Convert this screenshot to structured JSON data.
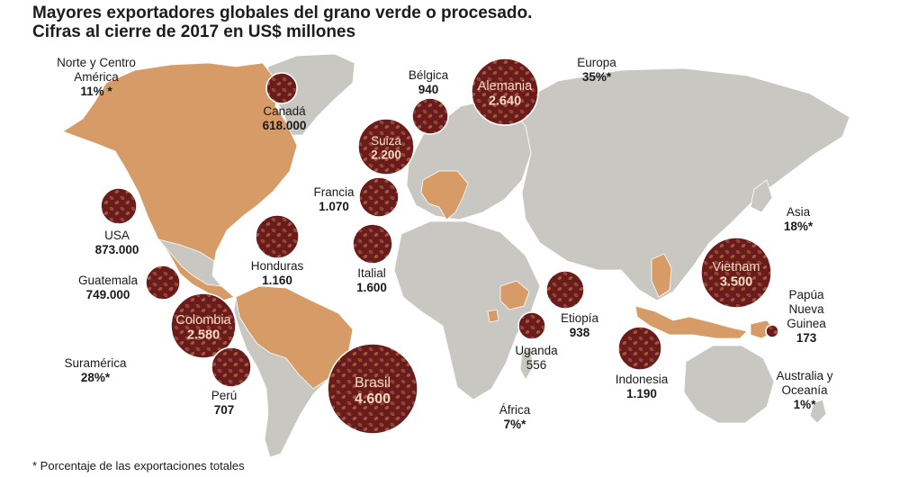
{
  "title": {
    "line1": "Mayores exportadores globales del grano verde o procesado.",
    "line2": "Cifras al cierre de 2017 en US$ millones"
  },
  "footnote": "* Porcentaje de las exportaciones totales",
  "colors": {
    "land": "#c9c7c2",
    "producer": "#d69b66",
    "bubble": "#6a1c1c",
    "bean": "#a3563b",
    "bubble_text": "#f3d9c3"
  },
  "regions": [
    {
      "id": "norte-centro-america",
      "name": "Norte y Centro América",
      "name1": "Norte y Centro",
      "name2": "América",
      "pct": "11% *"
    },
    {
      "id": "suramerica",
      "name": "Suramérica",
      "pct": "28%*"
    },
    {
      "id": "europa",
      "name": "Europa",
      "pct": "35%*"
    },
    {
      "id": "asia",
      "name": "Asia",
      "pct": "18%*"
    },
    {
      "id": "africa",
      "name": "África",
      "pct": "7%*"
    },
    {
      "id": "australia-oceania",
      "name": "Australia y Oceanía",
      "name1": "Australia y",
      "name2": "Oceanía",
      "pct": "1%*"
    }
  ],
  "exporters": [
    {
      "id": "canada",
      "name": "Canadá",
      "value": "618.000",
      "inside": false,
      "icon": "coffee-beans-icon"
    },
    {
      "id": "usa",
      "name": "USA",
      "value": "873.000",
      "inside": false,
      "icon": "coffee-beans-icon"
    },
    {
      "id": "guatemala",
      "name": "Guatemala",
      "value": "749.000",
      "inside": false,
      "icon": "coffee-beans-icon"
    },
    {
      "id": "honduras",
      "name": "Honduras",
      "value": "1.160",
      "inside": false,
      "icon": "coffee-beans-icon"
    },
    {
      "id": "colombia",
      "name": "Colombia",
      "value": "2.580",
      "inside": true
    },
    {
      "id": "peru",
      "name": "Perú",
      "value": "707",
      "inside": false,
      "icon": "coffee-beans-icon"
    },
    {
      "id": "brasil",
      "name": "Brasil",
      "value": "4.600",
      "inside": true
    },
    {
      "id": "belgica",
      "name": "Bélgica",
      "value": "940",
      "inside": false,
      "icon": "coffee-beans-icon"
    },
    {
      "id": "alemania",
      "name": "Alemania",
      "value": "2.640",
      "inside": true
    },
    {
      "id": "suiza",
      "name": "Suiza",
      "value": "2.200",
      "inside": true
    },
    {
      "id": "francia",
      "name": "Francia",
      "value": "1.070",
      "inside": false,
      "icon": "coffee-beans-icon"
    },
    {
      "id": "italia",
      "name": "Italial",
      "value": "1.600",
      "inside": false,
      "icon": "coffee-beans-icon"
    },
    {
      "id": "etiopia",
      "name": "Etiopía",
      "value": "938",
      "inside": false,
      "icon": "coffee-beans-icon"
    },
    {
      "id": "uganda",
      "name": "Uganda",
      "value": "556",
      "inside": false,
      "icon": "coffee-beans-icon"
    },
    {
      "id": "indonesia",
      "name": "Indonesia",
      "value": "1.190",
      "inside": false,
      "icon": "coffee-beans-icon"
    },
    {
      "id": "vietnam",
      "name": "Vietnam",
      "value": "3.500",
      "inside": true
    },
    {
      "id": "papua",
      "name": "Papúa Nueva Guinea",
      "name1": "Papúa",
      "name2": "Nueva",
      "name3": "Guinea",
      "value": "173",
      "inside": false,
      "icon": "coffee-beans-icon"
    }
  ]
}
